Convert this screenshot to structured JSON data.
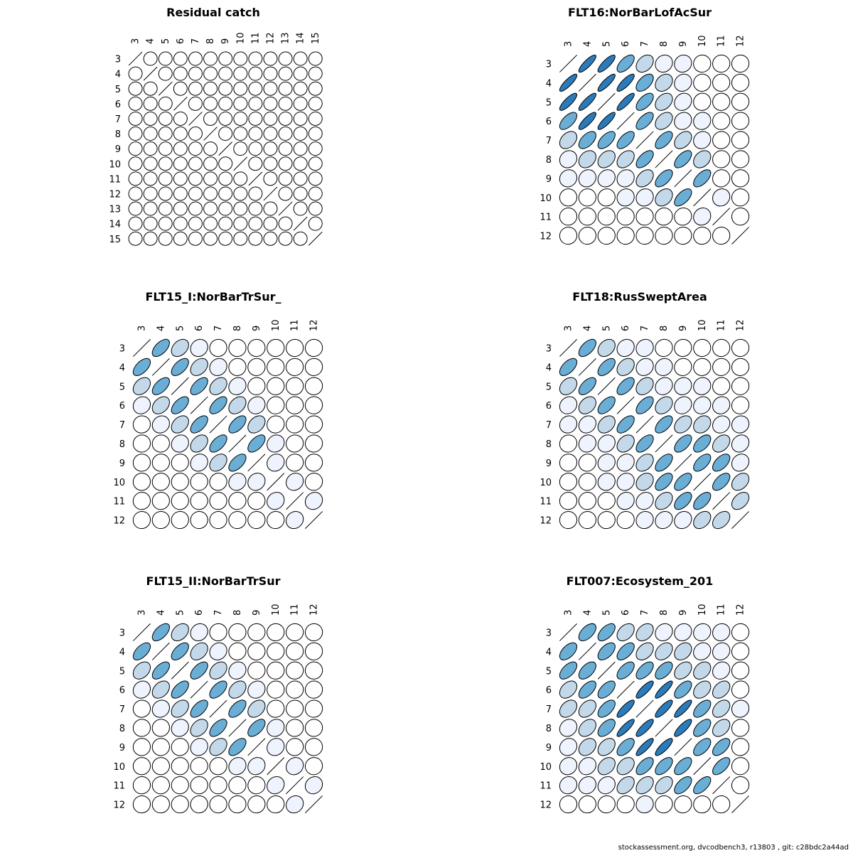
{
  "footer": "stockassessment.org, dvcodbench3, r13803 , git: c28bdc2a44ad",
  "chart_data": [
    {
      "type": "heatmap",
      "encoding": "correlation ellipses (lower and upper triangles mirrored), diagonal drawn as line",
      "title": "Residual catch",
      "labels": [
        "3",
        "4",
        "5",
        "6",
        "7",
        "8",
        "9",
        "10",
        "11",
        "12",
        "13",
        "14",
        "15"
      ],
      "matrix": [
        [
          1.0,
          0.02,
          0.02,
          0.02,
          0.02,
          0.02,
          0.02,
          0.02,
          0.02,
          0.02,
          0.02,
          0.02,
          0.02
        ],
        [
          0.02,
          1.0,
          0.02,
          0.02,
          0.02,
          0.02,
          0.02,
          0.02,
          0.02,
          0.02,
          0.02,
          0.02,
          0.02
        ],
        [
          0.02,
          0.02,
          1.0,
          0.02,
          0.02,
          0.02,
          0.02,
          0.02,
          0.02,
          0.02,
          0.02,
          0.02,
          0.02
        ],
        [
          0.02,
          0.02,
          0.02,
          1.0,
          0.02,
          0.02,
          0.02,
          0.02,
          0.02,
          0.02,
          0.02,
          0.02,
          0.02
        ],
        [
          0.02,
          0.02,
          0.02,
          0.02,
          1.0,
          0.02,
          0.02,
          0.02,
          0.02,
          0.02,
          0.02,
          0.02,
          0.02
        ],
        [
          0.02,
          0.02,
          0.02,
          0.02,
          0.02,
          1.0,
          0.02,
          0.02,
          0.02,
          0.02,
          0.02,
          0.02,
          0.02
        ],
        [
          0.02,
          0.02,
          0.02,
          0.02,
          0.02,
          0.02,
          1.0,
          0.02,
          0.02,
          0.02,
          0.02,
          0.02,
          0.02
        ],
        [
          0.02,
          0.02,
          0.02,
          0.02,
          0.02,
          0.02,
          0.02,
          1.0,
          0.02,
          0.02,
          0.02,
          0.02,
          0.02
        ],
        [
          0.02,
          0.02,
          0.02,
          0.02,
          0.02,
          0.02,
          0.02,
          0.02,
          1.0,
          0.02,
          0.02,
          0.02,
          0.02
        ],
        [
          0.02,
          0.02,
          0.02,
          0.02,
          0.02,
          0.02,
          0.02,
          0.02,
          0.02,
          1.0,
          0.02,
          0.02,
          0.02
        ],
        [
          0.02,
          0.02,
          0.02,
          0.02,
          0.02,
          0.02,
          0.02,
          0.02,
          0.02,
          0.02,
          1.0,
          0.02,
          0.02
        ],
        [
          0.02,
          0.02,
          0.02,
          0.02,
          0.02,
          0.02,
          0.02,
          0.02,
          0.02,
          0.02,
          0.02,
          1.0,
          0.02
        ],
        [
          0.02,
          0.02,
          0.02,
          0.02,
          0.02,
          0.02,
          0.02,
          0.02,
          0.02,
          0.02,
          0.02,
          0.02,
          1.0
        ]
      ]
    },
    {
      "type": "heatmap",
      "encoding": "correlation ellipses",
      "title": "FLT16:NorBarLofAcSur",
      "labels": [
        "3",
        "4",
        "5",
        "6",
        "7",
        "8",
        "9",
        "10",
        "11",
        "12"
      ],
      "matrix": [
        [
          1.0,
          0.85,
          0.82,
          0.62,
          0.35,
          0.12,
          0.08,
          0.02,
          0.02,
          0.02
        ],
        [
          0.85,
          1.0,
          0.85,
          0.82,
          0.55,
          0.28,
          0.12,
          0.03,
          0.02,
          0.02
        ],
        [
          0.82,
          0.85,
          1.0,
          0.85,
          0.6,
          0.35,
          0.15,
          0.04,
          0.02,
          0.02
        ],
        [
          0.62,
          0.82,
          0.85,
          1.0,
          0.62,
          0.38,
          0.12,
          0.08,
          0.02,
          0.02
        ],
        [
          0.35,
          0.55,
          0.6,
          0.62,
          1.0,
          0.6,
          0.38,
          0.1,
          0.03,
          0.02
        ],
        [
          0.12,
          0.28,
          0.35,
          0.38,
          0.6,
          1.0,
          0.6,
          0.3,
          0.04,
          0.02
        ],
        [
          0.08,
          0.12,
          0.15,
          0.12,
          0.38,
          0.6,
          1.0,
          0.6,
          0.05,
          0.02
        ],
        [
          0.02,
          0.03,
          0.04,
          0.08,
          0.1,
          0.3,
          0.6,
          1.0,
          0.1,
          0.03
        ],
        [
          0.02,
          0.02,
          0.02,
          0.02,
          0.03,
          0.04,
          0.05,
          0.1,
          1.0,
          0.02
        ],
        [
          0.02,
          0.02,
          0.02,
          0.02,
          0.02,
          0.02,
          0.02,
          0.03,
          0.02,
          1.0
        ]
      ]
    },
    {
      "type": "heatmap",
      "encoding": "correlation ellipses",
      "title": "FLT15_I:NorBarTrSur_",
      "labels": [
        "3",
        "4",
        "5",
        "6",
        "7",
        "8",
        "9",
        "10",
        "11",
        "12"
      ],
      "matrix": [
        [
          1.0,
          0.58,
          0.35,
          0.12,
          0.03,
          0.02,
          0.02,
          0.02,
          0.02,
          0.02
        ],
        [
          0.58,
          1.0,
          0.58,
          0.35,
          0.12,
          0.03,
          0.02,
          0.02,
          0.02,
          0.02
        ],
        [
          0.35,
          0.58,
          1.0,
          0.58,
          0.35,
          0.12,
          0.03,
          0.02,
          0.02,
          0.02
        ],
        [
          0.12,
          0.35,
          0.58,
          1.0,
          0.58,
          0.35,
          0.12,
          0.03,
          0.02,
          0.02
        ],
        [
          0.03,
          0.12,
          0.35,
          0.58,
          1.0,
          0.58,
          0.35,
          0.04,
          0.02,
          0.02
        ],
        [
          0.02,
          0.03,
          0.12,
          0.35,
          0.58,
          1.0,
          0.58,
          0.12,
          0.03,
          0.02
        ],
        [
          0.02,
          0.02,
          0.03,
          0.12,
          0.35,
          0.58,
          1.0,
          0.12,
          0.03,
          0.02
        ],
        [
          0.02,
          0.02,
          0.02,
          0.03,
          0.04,
          0.12,
          0.12,
          1.0,
          0.12,
          0.03
        ],
        [
          0.02,
          0.02,
          0.02,
          0.02,
          0.02,
          0.03,
          0.03,
          0.12,
          1.0,
          0.12
        ],
        [
          0.02,
          0.02,
          0.02,
          0.02,
          0.02,
          0.02,
          0.02,
          0.03,
          0.12,
          1.0
        ]
      ]
    },
    {
      "type": "heatmap",
      "encoding": "correlation ellipses",
      "title": "FLT18:RusSweptArea",
      "labels": [
        "3",
        "4",
        "5",
        "6",
        "7",
        "8",
        "9",
        "10",
        "11",
        "12"
      ],
      "matrix": [
        [
          1.0,
          0.58,
          0.32,
          0.15,
          0.1,
          0.05,
          0.03,
          0.02,
          0.02,
          0.02
        ],
        [
          0.58,
          1.0,
          0.58,
          0.32,
          0.15,
          0.1,
          0.05,
          0.03,
          0.02,
          0.02
        ],
        [
          0.32,
          0.58,
          1.0,
          0.58,
          0.32,
          0.15,
          0.1,
          0.08,
          0.05,
          0.03
        ],
        [
          0.15,
          0.32,
          0.58,
          1.0,
          0.58,
          0.32,
          0.15,
          0.12,
          0.1,
          0.05
        ],
        [
          0.1,
          0.15,
          0.32,
          0.58,
          1.0,
          0.58,
          0.35,
          0.25,
          0.15,
          0.08
        ],
        [
          0.05,
          0.1,
          0.15,
          0.32,
          0.58,
          1.0,
          0.58,
          0.55,
          0.35,
          0.15
        ],
        [
          0.03,
          0.05,
          0.1,
          0.15,
          0.35,
          0.58,
          1.0,
          0.58,
          0.55,
          0.15
        ],
        [
          0.02,
          0.03,
          0.08,
          0.12,
          0.25,
          0.55,
          0.58,
          1.0,
          0.58,
          0.35
        ],
        [
          0.02,
          0.02,
          0.05,
          0.1,
          0.15,
          0.35,
          0.55,
          0.58,
          1.0,
          0.4
        ],
        [
          0.02,
          0.02,
          0.03,
          0.05,
          0.08,
          0.15,
          0.15,
          0.35,
          0.4,
          1.0
        ]
      ]
    },
    {
      "type": "heatmap",
      "encoding": "correlation ellipses",
      "title": "FLT15_II:NorBarTrSur",
      "labels": [
        "3",
        "4",
        "5",
        "6",
        "7",
        "8",
        "9",
        "10",
        "11",
        "12"
      ],
      "matrix": [
        [
          1.0,
          0.58,
          0.35,
          0.12,
          0.03,
          0.02,
          0.02,
          0.02,
          0.02,
          0.02
        ],
        [
          0.58,
          1.0,
          0.58,
          0.35,
          0.12,
          0.03,
          0.02,
          0.02,
          0.02,
          0.02
        ],
        [
          0.35,
          0.58,
          1.0,
          0.58,
          0.35,
          0.12,
          0.03,
          0.02,
          0.02,
          0.02
        ],
        [
          0.12,
          0.35,
          0.58,
          1.0,
          0.58,
          0.35,
          0.12,
          0.03,
          0.02,
          0.02
        ],
        [
          0.03,
          0.12,
          0.35,
          0.58,
          1.0,
          0.58,
          0.35,
          0.04,
          0.02,
          0.02
        ],
        [
          0.02,
          0.03,
          0.12,
          0.35,
          0.58,
          1.0,
          0.58,
          0.12,
          0.03,
          0.02
        ],
        [
          0.02,
          0.02,
          0.03,
          0.12,
          0.35,
          0.58,
          1.0,
          0.12,
          0.03,
          0.02
        ],
        [
          0.02,
          0.02,
          0.02,
          0.03,
          0.04,
          0.12,
          0.12,
          1.0,
          0.12,
          0.03
        ],
        [
          0.02,
          0.02,
          0.02,
          0.02,
          0.02,
          0.03,
          0.03,
          0.12,
          1.0,
          0.12
        ],
        [
          0.02,
          0.02,
          0.02,
          0.02,
          0.02,
          0.02,
          0.02,
          0.03,
          0.12,
          1.0
        ]
      ]
    },
    {
      "type": "heatmap",
      "encoding": "correlation ellipses",
      "title": "FLT007:Ecosystem_201",
      "labels": [
        "3",
        "4",
        "5",
        "6",
        "7",
        "8",
        "9",
        "10",
        "11",
        "12"
      ],
      "matrix": [
        [
          1.0,
          0.55,
          0.58,
          0.38,
          0.35,
          0.15,
          0.12,
          0.1,
          0.08,
          0.02
        ],
        [
          0.55,
          1.0,
          0.55,
          0.58,
          0.38,
          0.35,
          0.3,
          0.15,
          0.12,
          0.03
        ],
        [
          0.58,
          0.55,
          1.0,
          0.58,
          0.58,
          0.55,
          0.38,
          0.32,
          0.15,
          0.04
        ],
        [
          0.38,
          0.58,
          0.58,
          1.0,
          0.82,
          0.85,
          0.58,
          0.35,
          0.38,
          0.05
        ],
        [
          0.35,
          0.38,
          0.58,
          0.82,
          1.0,
          0.82,
          0.85,
          0.58,
          0.38,
          0.06
        ],
        [
          0.15,
          0.35,
          0.55,
          0.85,
          0.82,
          1.0,
          0.82,
          0.58,
          0.38,
          0.05
        ],
        [
          0.12,
          0.3,
          0.38,
          0.58,
          0.85,
          0.82,
          1.0,
          0.58,
          0.58,
          0.04
        ],
        [
          0.1,
          0.15,
          0.32,
          0.35,
          0.58,
          0.58,
          0.58,
          1.0,
          0.62,
          0.03
        ],
        [
          0.08,
          0.12,
          0.15,
          0.38,
          0.38,
          0.38,
          0.58,
          0.62,
          1.0,
          0.02
        ],
        [
          0.02,
          0.03,
          0.04,
          0.05,
          0.06,
          0.05,
          0.04,
          0.03,
          0.02,
          1.0
        ]
      ]
    }
  ]
}
